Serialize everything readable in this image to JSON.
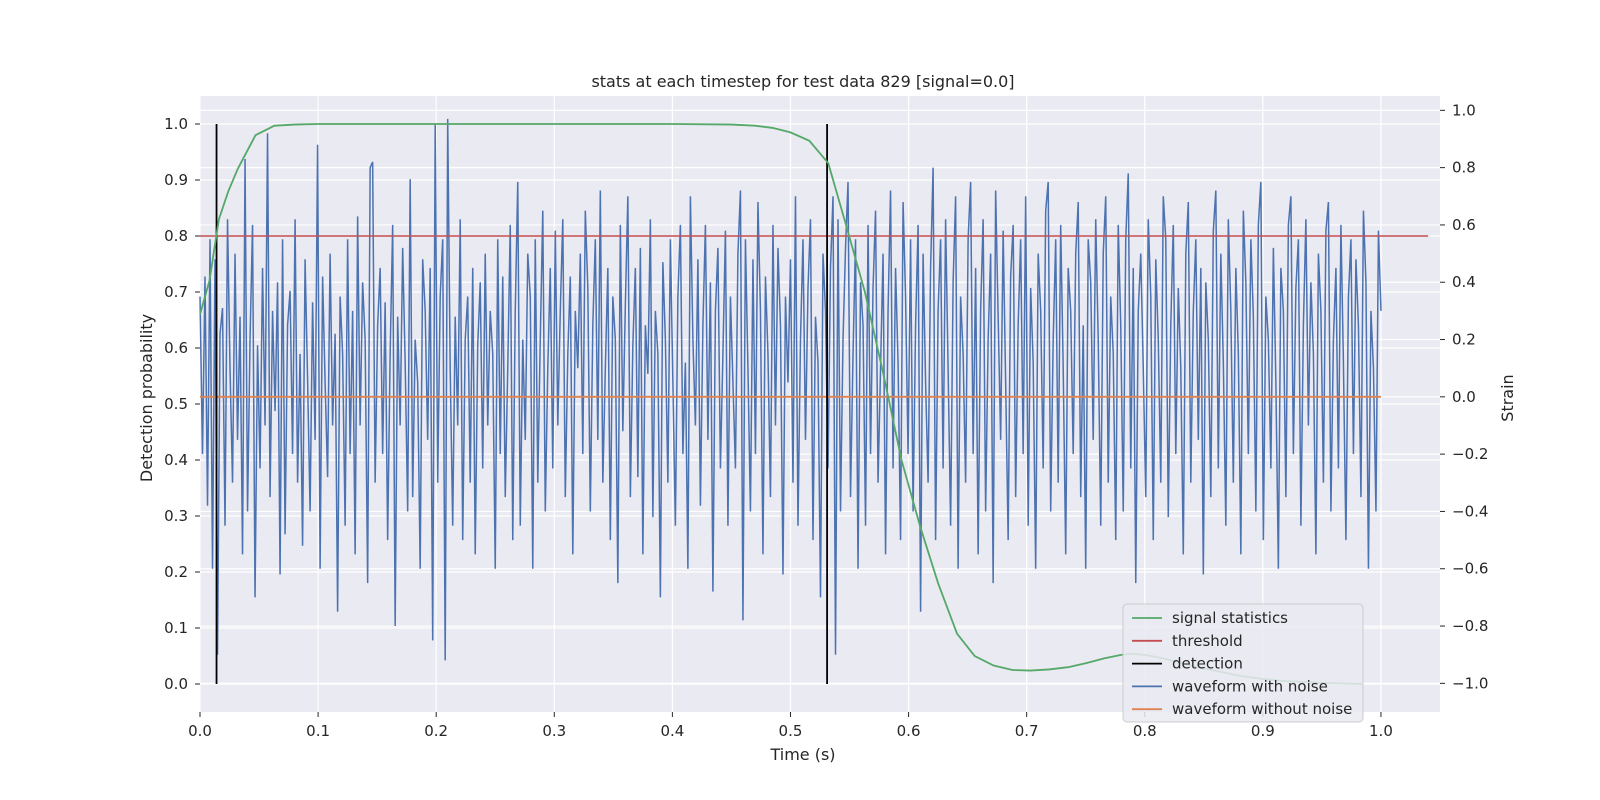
{
  "chart_data": {
    "type": "line",
    "title": "stats at each timestep for test data 829 [signal=0.0]",
    "xlabel": "Time (s)",
    "ylabel": "Detection probability",
    "ylabel_right": "Strain",
    "xlim": [
      0.0,
      1.05
    ],
    "ylim": [
      -0.05,
      1.05
    ],
    "ylim_right": [
      -1.1,
      1.05
    ],
    "xticks": [
      "0.0",
      "0.1",
      "0.2",
      "0.3",
      "0.4",
      "0.5",
      "0.6",
      "0.7",
      "0.8",
      "0.9",
      "1.0"
    ],
    "yticks": [
      "0.0",
      "0.1",
      "0.2",
      "0.3",
      "0.4",
      "0.5",
      "0.6",
      "0.7",
      "0.8",
      "0.9",
      "1.0"
    ],
    "yticks_right": [
      "−1.0",
      "−0.8",
      "−0.6",
      "−0.4",
      "−0.2",
      "0.0",
      "0.2",
      "0.4",
      "0.6",
      "0.8",
      "1.0"
    ],
    "grid": true,
    "legend_position": "lower-right",
    "series": [
      {
        "name": "signal statistics",
        "color": "#55a868",
        "x": [
          0.0,
          0.008,
          0.016,
          0.024,
          0.032,
          0.047,
          0.063,
          0.08,
          0.1,
          0.2,
          0.3,
          0.4,
          0.45,
          0.47,
          0.485,
          0.5,
          0.516,
          0.532,
          0.547,
          0.563,
          0.578,
          0.594,
          0.61,
          0.625,
          0.641,
          0.656,
          0.672,
          0.688,
          0.703,
          0.719,
          0.735,
          0.75,
          0.766,
          0.78,
          0.79,
          0.8,
          0.815,
          0.83,
          0.85,
          0.88,
          0.9,
          0.92,
          0.95,
          0.985
        ],
        "y": [
          0.66,
          0.72,
          0.83,
          0.88,
          0.92,
          0.98,
          0.997,
          0.999,
          1.0,
          1.0,
          1.0,
          1.0,
          0.999,
          0.997,
          0.993,
          0.985,
          0.97,
          0.93,
          0.82,
          0.7,
          0.56,
          0.4,
          0.28,
          0.18,
          0.09,
          0.05,
          0.033,
          0.025,
          0.024,
          0.026,
          0.03,
          0.037,
          0.046,
          0.052,
          0.054,
          0.052,
          0.046,
          0.038,
          0.028,
          0.015,
          0.009,
          0.005,
          0.002,
          0.0
        ]
      },
      {
        "name": "threshold",
        "color": "#c44e52",
        "x": [
          0.0,
          1.04
        ],
        "y": [
          0.8,
          0.8
        ]
      },
      {
        "name": "detection",
        "color": "#000000",
        "x": [
          0.014,
          0.531
        ],
        "y": [
          1.0,
          1.0
        ]
      },
      {
        "name": "waveform with noise",
        "color": "#4c72b0",
        "axis": "right",
        "x_start": 0.0,
        "x_end": 1.0,
        "values": [
          0.35,
          -0.2,
          0.42,
          -0.38,
          0.55,
          -0.6,
          0.48,
          -0.9,
          0.22,
          0.31,
          -0.45,
          0.62,
          0.1,
          -0.3,
          0.5,
          -0.15,
          0.28,
          -0.55,
          0.83,
          -0.4,
          0.2,
          0.6,
          -0.7,
          0.18,
          -0.25,
          0.45,
          -0.1,
          0.92,
          -0.35,
          0.3,
          -0.05,
          0.4,
          -0.62,
          0.55,
          -0.48,
          0.25,
          0.37,
          -0.2,
          0.62,
          -0.3,
          0.15,
          -0.52,
          0.48,
          0.06,
          -0.4,
          0.33,
          -0.15,
          0.88,
          -0.6,
          0.42,
          0.05,
          -0.28,
          0.5,
          -0.1,
          0.22,
          -0.75,
          0.35,
          0.15,
          -0.45,
          0.55,
          -0.2,
          0.3,
          -0.55,
          0.63,
          -0.1,
          0.4,
          0.2,
          -0.65,
          0.8,
          0.82,
          -0.3,
          0.25,
          0.45,
          -0.2,
          0.33,
          -0.5,
          0.15,
          0.6,
          -0.8,
          0.28,
          -0.1,
          0.52,
          0.12,
          -0.4,
          0.76,
          -0.35,
          0.2,
          0.05,
          -0.6,
          0.48,
          0.3,
          -0.15,
          0.45,
          -0.85,
          0.95,
          -0.3,
          0.35,
          0.55,
          -0.92,
          0.97,
          0.1,
          -0.45,
          0.28,
          -0.1,
          0.62,
          -0.5,
          0.2,
          0.35,
          -0.3,
          0.45,
          -0.55,
          0.18,
          0.4,
          -0.25,
          0.5,
          -0.1,
          0.3,
          0.15,
          -0.6,
          0.55,
          -0.2,
          0.42,
          -0.35,
          0.1,
          0.6,
          -0.5,
          0.3,
          0.75,
          -0.45,
          0.2,
          -0.15,
          0.5,
          0.35,
          -0.6,
          0.55,
          -0.3,
          0.2,
          0.65,
          -0.4,
          0.1,
          0.45,
          -0.25,
          0.58,
          -0.1,
          0.3,
          0.62,
          -0.35,
          0.15,
          0.42,
          -0.55,
          0.3,
          0.1,
          0.5,
          -0.2,
          0.65,
          0.38,
          -0.4,
          0.25,
          0.55,
          -0.15,
          0.72,
          -0.3,
          0.1,
          0.45,
          -0.5,
          0.35,
          0.2,
          -0.65,
          0.6,
          -0.12,
          0.32,
          0.7,
          -0.35,
          0.18,
          0.45,
          -0.28,
          0.52,
          -0.55,
          0.25,
          0.08,
          0.62,
          -0.42,
          0.3,
          0.15,
          -0.7,
          0.47,
          0.2,
          -0.3,
          0.55,
          0.05,
          -0.45,
          0.35,
          0.6,
          -0.2,
          0.12,
          -0.6,
          0.7,
          0.2,
          -0.1,
          0.48,
          -0.38,
          0.25,
          0.6,
          -0.15,
          0.4,
          -0.68,
          0.3,
          0.52,
          -0.25,
          0.15,
          0.58,
          -0.45,
          0.35,
          0.05,
          -0.25,
          0.5,
          0.72,
          -0.78,
          0.55,
          0.1,
          -0.4,
          0.48,
          -0.2,
          0.68,
          0.3,
          -0.55,
          0.42,
          0.15,
          -0.35,
          0.6,
          -0.1,
          0.52,
          0.25,
          -0.62,
          0.35,
          0.05,
          0.48,
          -0.3,
          0.7,
          -0.45,
          0.2,
          0.55,
          -0.15,
          0.38,
          0.62,
          -0.5,
          0.28,
          0.12,
          -0.7,
          0.5,
          0.3,
          -0.25,
          0.45,
          0.7,
          -0.9,
          0.62,
          -0.4,
          0.2,
          0.52,
          0.75,
          -0.35,
          0.15,
          0.55,
          -0.6,
          0.4,
          0.25,
          -0.45,
          0.6,
          -0.2,
          0.38,
          0.65,
          -0.3,
          0.1,
          0.5,
          -0.55,
          0.3,
          0.72,
          -0.25,
          0.45,
          0.12,
          -0.5,
          0.68,
          0.35,
          -0.2,
          0.55,
          -0.4,
          0.25,
          0.6,
          -0.75,
          0.5,
          0.05,
          -0.3,
          0.45,
          0.8,
          -0.5,
          0.3,
          0.55,
          -0.25,
          0.62,
          0.1,
          -0.45,
          0.4,
          0.7,
          -0.6,
          0.35,
          0.15,
          -0.3,
          0.55,
          0.75,
          -0.2,
          0.45,
          -0.55,
          0.3,
          0.62,
          -0.4,
          0.2,
          0.5,
          -0.65,
          0.72,
          0.28,
          -0.15,
          0.58,
          0.05,
          -0.5,
          0.42,
          0.6,
          -0.35,
          0.25,
          0.55,
          -0.2,
          0.7,
          -0.45,
          0.38,
          0.12,
          -0.6,
          0.5,
          0.3,
          -0.25,
          0.65,
          0.75,
          -0.4,
          0.2,
          0.55,
          -0.3,
          0.6,
          0.1,
          -0.55,
          0.45,
          0.3,
          -0.2,
          0.5,
          0.68,
          -0.35,
          0.25,
          -0.6,
          0.55,
          0.4,
          -0.15,
          0.62,
          0.2,
          -0.45,
          0.5,
          0.7,
          -0.3,
          0.35,
          0.15,
          -0.5,
          0.6,
          0.25,
          -0.4,
          0.55,
          0.78,
          -0.25,
          0.45,
          -0.65,
          0.3,
          0.5,
          0.1,
          -0.35,
          0.62,
          0.35,
          -0.5,
          0.48,
          0.2,
          -0.3,
          0.7,
          0.55,
          -0.42,
          0.25,
          0.6,
          -0.2,
          0.38,
          0.1,
          -0.55,
          0.5,
          0.68,
          -0.3,
          0.3,
          0.55,
          -0.15,
          0.45,
          -0.62,
          0.4,
          0.2,
          -0.35,
          0.58,
          0.72,
          -0.25,
          0.5,
          0.12,
          -0.45,
          0.62,
          0.3,
          -0.3,
          0.45,
          0.15,
          -0.55,
          0.65,
          0.4,
          -0.2,
          0.55,
          0.28,
          -0.4,
          0.6,
          0.75,
          -0.5,
          0.35,
          0.2,
          -0.25,
          0.52,
          0.05,
          -0.6,
          0.45,
          0.3,
          -0.35,
          0.6,
          0.7,
          -0.2,
          0.38,
          0.55,
          -0.45,
          0.25,
          0.62,
          -0.1,
          0.4,
          0.15,
          -0.55,
          0.5,
          0.3,
          -0.3,
          0.58,
          0.68,
          -0.4,
          0.2,
          0.45,
          -0.25,
          0.6,
          0.12,
          -0.5,
          0.35,
          0.55,
          -0.2,
          0.48,
          0.25,
          -0.35,
          0.65,
          0.4,
          -0.6,
          0.3,
          0.1,
          -0.4,
          0.58,
          0.3
        ],
        "values_note": ""
      },
      {
        "name": "waveform without noise",
        "color": "#dd8452",
        "axis": "right",
        "x": [
          0.0,
          1.0
        ],
        "y": [
          0.0,
          0.0
        ]
      }
    ]
  }
}
